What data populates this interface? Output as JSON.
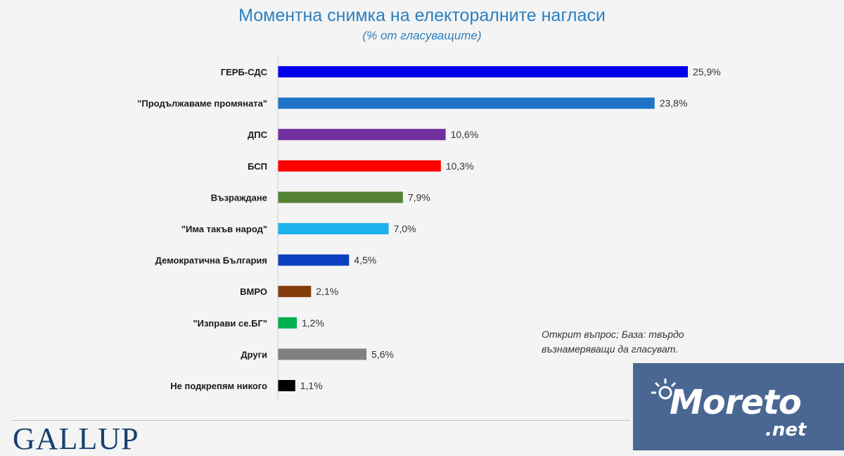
{
  "chart_data": {
    "type": "bar",
    "orientation": "horizontal",
    "title": "Моментна снимка на електоралните нагласи",
    "subtitle": "(% от гласуващите)",
    "categories": [
      "ГЕРБ-СДС",
      "\"Продължаваме промяната\"",
      "ДПС",
      "БСП",
      "Възраждане",
      "\"Има такъв народ\"",
      "Демократична България",
      "ВМРО",
      "\"Изправи се.БГ\"",
      "Други",
      "Не подкрепям никого"
    ],
    "values": [
      25.9,
      23.8,
      10.6,
      10.3,
      7.9,
      7.0,
      4.5,
      2.1,
      1.2,
      5.6,
      1.1
    ],
    "value_labels": [
      "25,9%",
      "23,8%",
      "10,6%",
      "10,3%",
      "7,9%",
      "7,0%",
      "4,5%",
      "2,1%",
      "1,2%",
      "5,6%",
      "1,1%"
    ],
    "colors": [
      "#0000ee",
      "#1f73c6",
      "#7030a0",
      "#ff0000",
      "#548235",
      "#1fb2ec",
      "#0a3fbf",
      "#843c0c",
      "#00b050",
      "#808080",
      "#000000"
    ],
    "xlim": [
      0,
      25.9
    ],
    "grid": false,
    "legend": "none"
  },
  "note": "Открит въпрос; База: твърдо възнамеряващи да гласуват.",
  "logo_text": "GALLUP",
  "watermark": {
    "brand": "Moreto",
    "suffix": ".net"
  }
}
